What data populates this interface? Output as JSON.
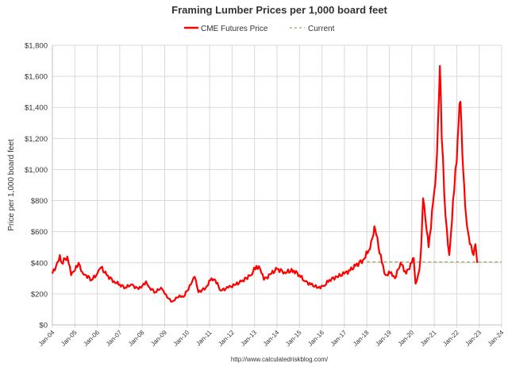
{
  "chart_data": {
    "type": "line",
    "title": "Framing Lumber Prices per 1,000 board feet",
    "xlabel": "",
    "ylabel": "Price per 1,000 board feet",
    "ylim": [
      0,
      1800
    ],
    "xlim": [
      "2004-01",
      "2024-01"
    ],
    "grid": true,
    "legend_placement": "top-center",
    "y_ticks": [
      "$0",
      "$200",
      "$400",
      "$600",
      "$800",
      "$1,000",
      "$1,200",
      "$1,400",
      "$1,600",
      "$1,800"
    ],
    "x_ticks": [
      "Jan-04",
      "Jan-05",
      "Jan-06",
      "Jan-07",
      "Jan-08",
      "Jan-09",
      "Jan-10",
      "Jan-11",
      "Jan-12",
      "Jan-13",
      "Jan-14",
      "Jan-15",
      "Jan-16",
      "Jan-17",
      "Jan-18",
      "Jan-19",
      "Jan-20",
      "Jan-21",
      "Jan-22",
      "Jan-23",
      "Jan-24"
    ],
    "source": "http://www.calculatedriskblog.com/",
    "series": [
      {
        "name": "CME Futures Price",
        "color": "#ff0000",
        "style": "solid",
        "points": [
          [
            "2004-01",
            330
          ],
          [
            "2004-03",
            380
          ],
          [
            "2004-05",
            450
          ],
          [
            "2004-06",
            400
          ],
          [
            "2004-09",
            440
          ],
          [
            "2004-11",
            320
          ],
          [
            "2005-01",
            350
          ],
          [
            "2005-03",
            400
          ],
          [
            "2005-05",
            340
          ],
          [
            "2005-07",
            320
          ],
          [
            "2005-10",
            290
          ],
          [
            "2006-01",
            330
          ],
          [
            "2006-03",
            370
          ],
          [
            "2006-06",
            320
          ],
          [
            "2006-10",
            280
          ],
          [
            "2007-01",
            260
          ],
          [
            "2007-04",
            240
          ],
          [
            "2007-07",
            260
          ],
          [
            "2007-11",
            230
          ],
          [
            "2008-01",
            250
          ],
          [
            "2008-03",
            280
          ],
          [
            "2008-05",
            240
          ],
          [
            "2008-08",
            210
          ],
          [
            "2008-11",
            240
          ],
          [
            "2009-01",
            200
          ],
          [
            "2009-03",
            170
          ],
          [
            "2009-05",
            150
          ],
          [
            "2009-09",
            190
          ],
          [
            "2009-11",
            180
          ],
          [
            "2010-03",
            260
          ],
          [
            "2010-05",
            310
          ],
          [
            "2010-07",
            210
          ],
          [
            "2010-11",
            240
          ],
          [
            "2011-02",
            300
          ],
          [
            "2011-04",
            290
          ],
          [
            "2011-07",
            220
          ],
          [
            "2011-11",
            240
          ],
          [
            "2012-03",
            260
          ],
          [
            "2012-06",
            280
          ],
          [
            "2012-11",
            320
          ],
          [
            "2013-02",
            380
          ],
          [
            "2013-04",
            360
          ],
          [
            "2013-06",
            290
          ],
          [
            "2013-10",
            330
          ],
          [
            "2014-01",
            360
          ],
          [
            "2014-05",
            340
          ],
          [
            "2014-10",
            350
          ],
          [
            "2015-01",
            320
          ],
          [
            "2015-04",
            280
          ],
          [
            "2015-07",
            260
          ],
          [
            "2015-11",
            240
          ],
          [
            "2016-02",
            250
          ],
          [
            "2016-05",
            290
          ],
          [
            "2016-09",
            310
          ],
          [
            "2017-01",
            330
          ],
          [
            "2017-04",
            350
          ],
          [
            "2017-07",
            380
          ],
          [
            "2017-11",
            420
          ],
          [
            "2018-02",
            480
          ],
          [
            "2018-04",
            560
          ],
          [
            "2018-05",
            635
          ],
          [
            "2018-06",
            580
          ],
          [
            "2018-09",
            400
          ],
          [
            "2018-11",
            320
          ],
          [
            "2019-02",
            340
          ],
          [
            "2019-04",
            300
          ],
          [
            "2019-07",
            400
          ],
          [
            "2019-10",
            330
          ],
          [
            "2020-01",
            400
          ],
          [
            "2020-02",
            430
          ],
          [
            "2020-03",
            266
          ],
          [
            "2020-05",
            350
          ],
          [
            "2020-06",
            500
          ],
          [
            "2020-07",
            815
          ],
          [
            "2020-09",
            600
          ],
          [
            "2020-10",
            500
          ],
          [
            "2021-01",
            860
          ],
          [
            "2021-02",
            1000
          ],
          [
            "2021-03",
            1300
          ],
          [
            "2021-04",
            1667
          ],
          [
            "2021-05",
            1200
          ],
          [
            "2021-07",
            700
          ],
          [
            "2021-09",
            450
          ],
          [
            "2021-10",
            600
          ],
          [
            "2021-11",
            800
          ],
          [
            "2022-01",
            1050
          ],
          [
            "2022-02",
            1300
          ],
          [
            "2022-03",
            1437
          ],
          [
            "2022-04",
            1100
          ],
          [
            "2022-05",
            900
          ],
          [
            "2022-06",
            700
          ],
          [
            "2022-07",
            600
          ],
          [
            "2022-08",
            520
          ],
          [
            "2022-10",
            450
          ],
          [
            "2022-11",
            520
          ],
          [
            "2022-12",
            400
          ]
        ]
      },
      {
        "name": "Current",
        "color": "#b5ae7e",
        "style": "dashed",
        "value": 405,
        "x_range": [
          "2018-01",
          "2024-01"
        ]
      }
    ]
  }
}
